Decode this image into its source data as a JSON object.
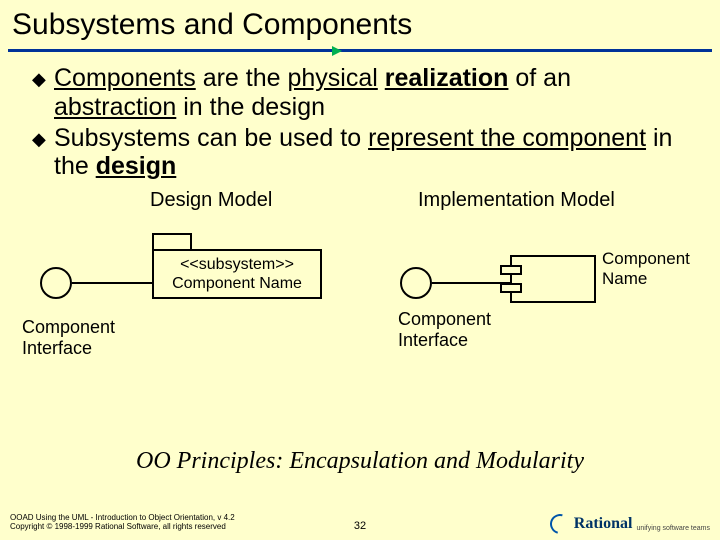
{
  "title": "Subsystems and Components",
  "colors": {
    "background": "#ffffcc",
    "title_line": "#003399",
    "title_arrow": "#00b050",
    "stroke": "#000000",
    "logo_blue": "#003366"
  },
  "bullets": [
    {
      "segments": [
        {
          "t": "Components",
          "u": true,
          "b": false
        },
        {
          "t": " are the ",
          "u": false,
          "b": false
        },
        {
          "t": "physical",
          "u": true,
          "b": false
        },
        {
          "t": " ",
          "u": false,
          "b": false
        },
        {
          "t": "realization",
          "u": true,
          "b": true
        },
        {
          "t": " of an ",
          "u": false,
          "b": false
        },
        {
          "t": "abstraction",
          "u": true,
          "b": false
        },
        {
          "t": " in the design",
          "u": false,
          "b": false
        }
      ]
    },
    {
      "segments": [
        {
          "t": "Subsystems can be used to ",
          "u": false,
          "b": false
        },
        {
          "t": "represent the component",
          "u": true,
          "b": false
        },
        {
          "t": " in the ",
          "u": false,
          "b": false
        },
        {
          "t": "design",
          "u": true,
          "b": true
        }
      ]
    }
  ],
  "diagram": {
    "design": {
      "heading": "Design Model",
      "stereotype": "<<subsystem>>",
      "name": "Component Name",
      "interface_label": "Component\nInterface"
    },
    "implementation": {
      "heading": "Implementation Model",
      "name": "Component\nName",
      "interface_label": "Component\nInterface"
    }
  },
  "principles": "OO Principles: Encapsulation and Modularity",
  "footer": {
    "line1": "OOAD Using the UML - Introduction to Object Orientation, v 4.2",
    "line2": "Copyright © 1998-1999 Rational Software, all rights reserved"
  },
  "page_number": "32",
  "logo": {
    "brand": "Rational",
    "tagline": "unifying software teams"
  }
}
